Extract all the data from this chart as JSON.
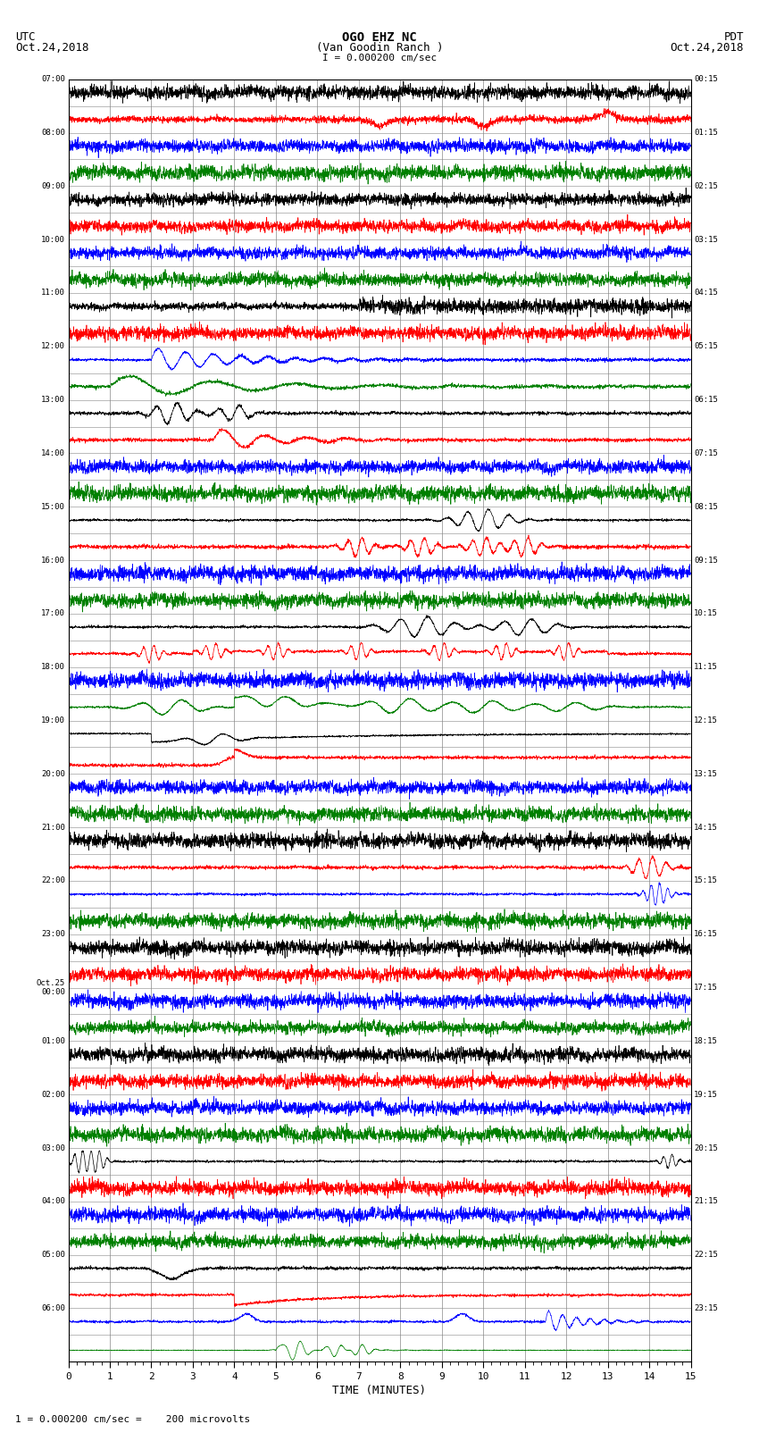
{
  "title_line1": "OGO EHZ NC",
  "title_line2": "(Van Goodin Ranch )",
  "title_line3": "I = 0.000200 cm/sec",
  "left_header_line1": "UTC",
  "left_header_line2": "Oct.24,2018",
  "right_header_line1": "PDT",
  "right_header_line2": "Oct.24,2018",
  "xlabel": "TIME (MINUTES)",
  "footer": "1 = 0.000200 cm/sec =    200 microvolts",
  "xlim": [
    0,
    15
  ],
  "xticks": [
    0,
    1,
    2,
    3,
    4,
    5,
    6,
    7,
    8,
    9,
    10,
    11,
    12,
    13,
    14,
    15
  ],
  "left_labels_utc": [
    "07:00",
    "",
    "08:00",
    "",
    "09:00",
    "",
    "10:00",
    "",
    "11:00",
    "",
    "12:00",
    "",
    "13:00",
    "",
    "14:00",
    "",
    "15:00",
    "",
    "16:00",
    "",
    "17:00",
    "",
    "18:00",
    "",
    "19:00",
    "",
    "20:00",
    "",
    "21:00",
    "",
    "22:00",
    "",
    "23:00",
    "",
    "Oct.25\n00:00",
    "",
    "01:00",
    "",
    "02:00",
    "",
    "03:00",
    "",
    "04:00",
    "",
    "05:00",
    "",
    "06:00",
    ""
  ],
  "right_labels_pdt": [
    "00:15",
    "",
    "01:15",
    "",
    "02:15",
    "",
    "03:15",
    "",
    "04:15",
    "",
    "05:15",
    "",
    "06:15",
    "",
    "07:15",
    "",
    "08:15",
    "",
    "09:15",
    "",
    "10:15",
    "",
    "11:15",
    "",
    "12:15",
    "",
    "13:15",
    "",
    "14:15",
    "",
    "15:15",
    "",
    "16:15",
    "",
    "17:15",
    "",
    "18:15",
    "",
    "19:15",
    "",
    "20:15",
    "",
    "21:15",
    "",
    "22:15",
    "",
    "23:15",
    ""
  ],
  "n_rows": 48,
  "colors_cycle": [
    "black",
    "red",
    "blue",
    "green"
  ],
  "bg_color": "white",
  "grid_color": "#888888",
  "seed": 42,
  "row_amplitudes": [
    0.05,
    0.12,
    0.08,
    0.04,
    0.04,
    0.04,
    0.05,
    0.06,
    0.08,
    0.04,
    0.35,
    0.45,
    0.25,
    0.18,
    0.08,
    0.06,
    0.12,
    0.08,
    0.06,
    0.05,
    0.6,
    0.8,
    0.15,
    0.1,
    0.08,
    0.06,
    0.05,
    0.06,
    0.25,
    0.1,
    0.08,
    0.08,
    0.08,
    0.07,
    0.06,
    0.06,
    0.06,
    0.06,
    0.06,
    0.06,
    0.12,
    0.06,
    0.06,
    0.06,
    0.08,
    0.06,
    0.2,
    0.35
  ]
}
